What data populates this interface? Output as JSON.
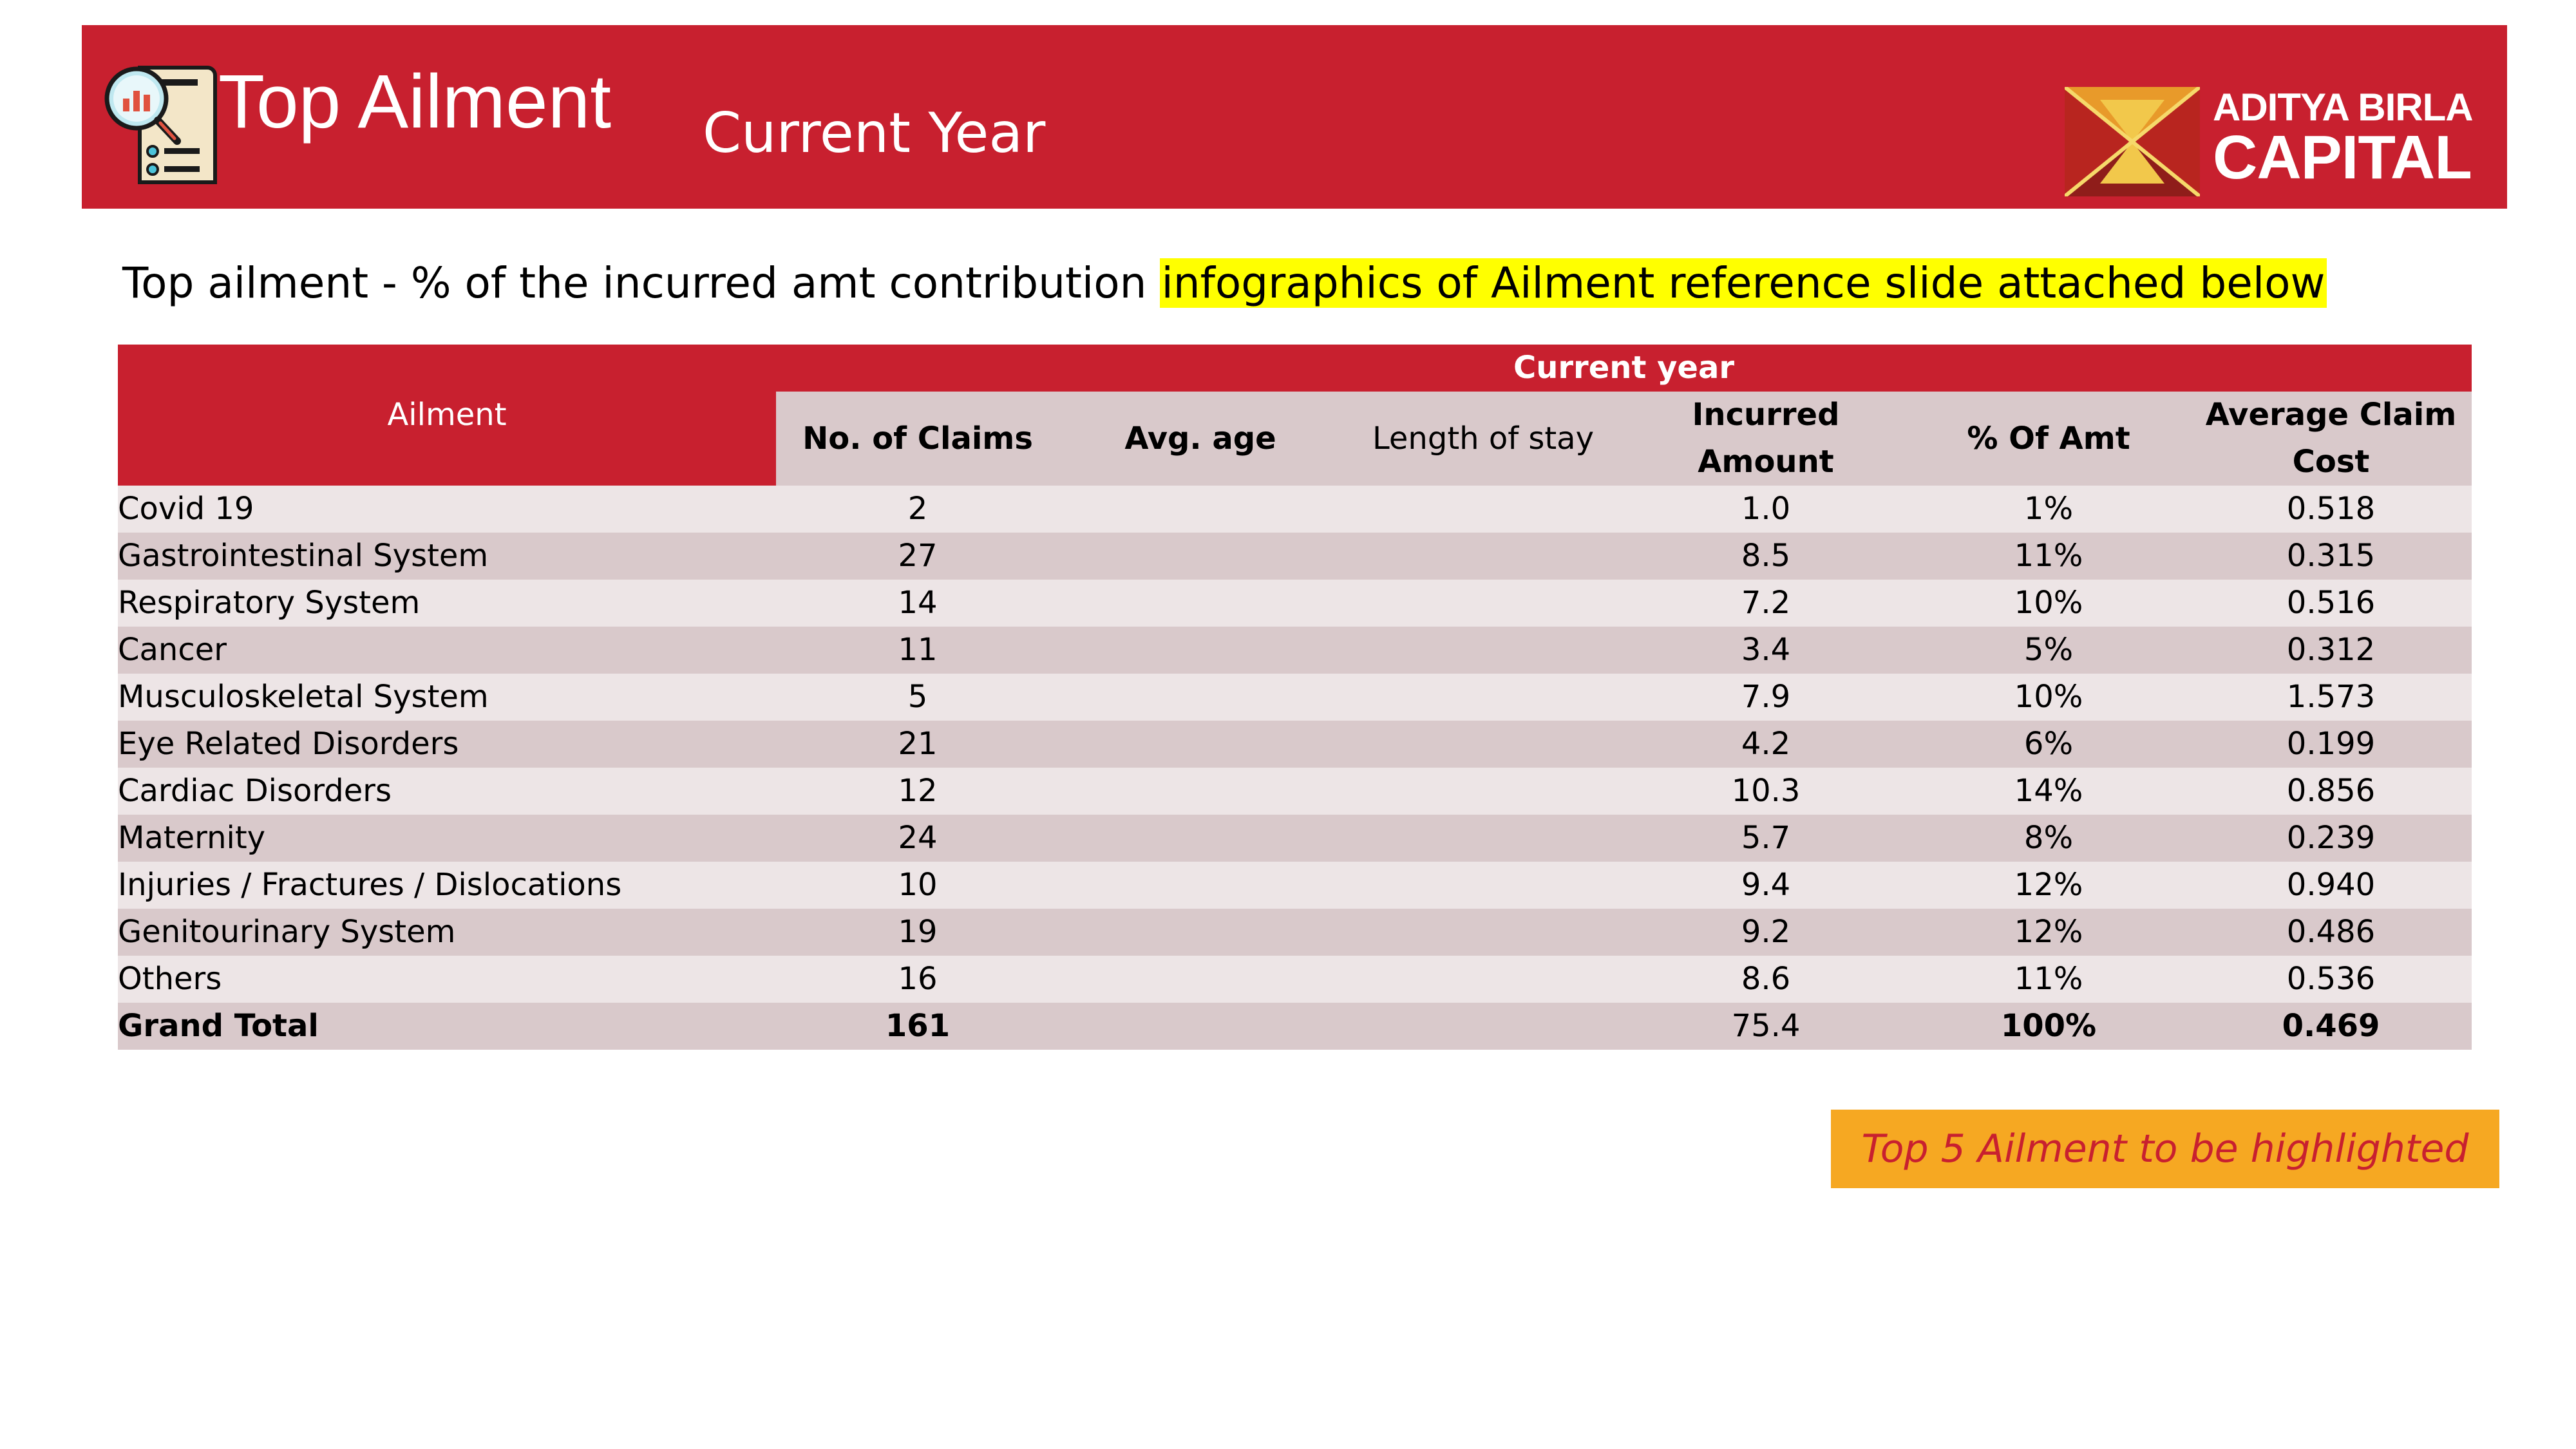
{
  "header": {
    "title": "Top Ailment",
    "subtitle": "Current Year",
    "logo_line1": "ADITYA BIRLA",
    "logo_line2": "CAPITAL",
    "brand_color": "#c8202f",
    "icon": "report-magnifier-icon"
  },
  "intro": {
    "text": "Top ailment - % of the incurred amt contribution ",
    "highlight": "infographics of Ailment reference slide attached below",
    "highlight_color": "#ffff00"
  },
  "table": {
    "group_header": "Current year",
    "columns": {
      "ailment": "Ailment",
      "claims": "No. of Claims",
      "avg_age": "Avg. age",
      "length_of_stay": "Length of stay",
      "incurred": "Incurred Amount",
      "pct_amt": "% Of Amt",
      "avg_claim_cost": "Average Claim Cost"
    },
    "rows": [
      {
        "ailment": "Covid 19",
        "claims": "2",
        "avg_age": "",
        "length_of_stay": "",
        "incurred": "1.0",
        "pct_amt": "1%",
        "avg_claim_cost": "0.518"
      },
      {
        "ailment": "Gastrointestinal System",
        "claims": "27",
        "avg_age": "",
        "length_of_stay": "",
        "incurred": "8.5",
        "pct_amt": "11%",
        "avg_claim_cost": "0.315"
      },
      {
        "ailment": "Respiratory System",
        "claims": "14",
        "avg_age": "",
        "length_of_stay": "",
        "incurred": "7.2",
        "pct_amt": "10%",
        "avg_claim_cost": "0.516"
      },
      {
        "ailment": "Cancer",
        "claims": "11",
        "avg_age": "",
        "length_of_stay": "",
        "incurred": "3.4",
        "pct_amt": "5%",
        "avg_claim_cost": "0.312"
      },
      {
        "ailment": "Musculoskeletal System",
        "claims": "5",
        "avg_age": "",
        "length_of_stay": "",
        "incurred": "7.9",
        "pct_amt": "10%",
        "avg_claim_cost": "1.573"
      },
      {
        "ailment": "Eye Related Disorders",
        "claims": "21",
        "avg_age": "",
        "length_of_stay": "",
        "incurred": "4.2",
        "pct_amt": "6%",
        "avg_claim_cost": "0.199"
      },
      {
        "ailment": "Cardiac Disorders",
        "claims": "12",
        "avg_age": "",
        "length_of_stay": "",
        "incurred": "10.3",
        "pct_amt": "14%",
        "avg_claim_cost": "0.856"
      },
      {
        "ailment": "Maternity",
        "claims": "24",
        "avg_age": "",
        "length_of_stay": "",
        "incurred": "5.7",
        "pct_amt": "8%",
        "avg_claim_cost": "0.239"
      },
      {
        "ailment": "Injuries / Fractures / Dislocations",
        "claims": "10",
        "avg_age": "",
        "length_of_stay": "",
        "incurred": "9.4",
        "pct_amt": "12%",
        "avg_claim_cost": "0.940"
      },
      {
        "ailment": "Genitourinary System",
        "claims": "19",
        "avg_age": "",
        "length_of_stay": "",
        "incurred": "9.2",
        "pct_amt": "12%",
        "avg_claim_cost": "0.486"
      },
      {
        "ailment": "Others",
        "claims": "16",
        "avg_age": "",
        "length_of_stay": "",
        "incurred": "8.6",
        "pct_amt": "11%",
        "avg_claim_cost": "0.536"
      }
    ],
    "total": {
      "ailment": "Grand Total",
      "claims": "161",
      "avg_age": "",
      "length_of_stay": "",
      "incurred": "75.4",
      "pct_amt": "100%",
      "avg_claim_cost": "0.469"
    }
  },
  "callout": {
    "text": "Top 5 Ailment to be highlighted",
    "background": "#f6a822"
  }
}
